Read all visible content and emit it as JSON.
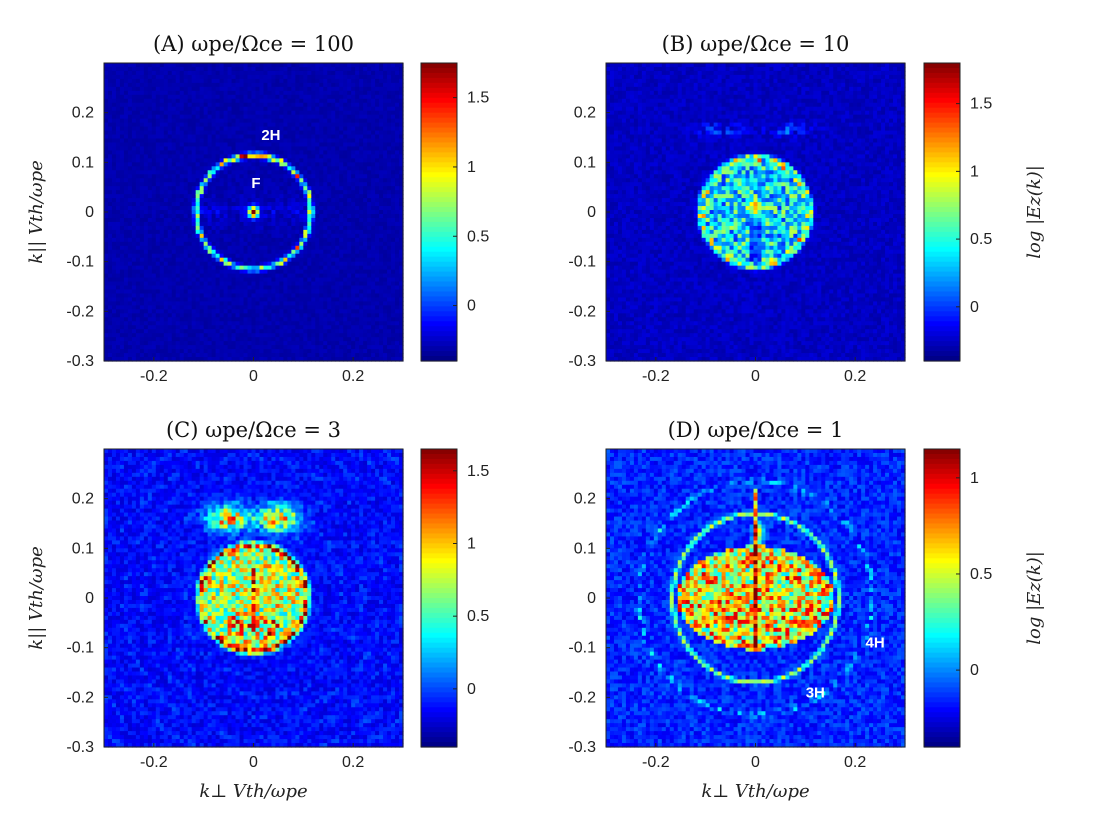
{
  "chart_data": [
    {
      "type": "heatmap",
      "panel": "A",
      "title": "(A) ωpe/Ωce = 100",
      "xlabel": "",
      "ylabel": "k|| Vth/ωpe",
      "xlim": [
        -0.3,
        0.3
      ],
      "ylim": [
        -0.3,
        0.3
      ],
      "xticks": [
        "-0.2",
        "0",
        "0.2"
      ],
      "yticks": [
        "-0.3",
        "-0.2",
        "-0.1",
        "0",
        "0.1",
        "0.2"
      ],
      "colorbar": {
        "label": "",
        "range": [
          -0.4,
          1.75
        ],
        "ticks": [
          "0",
          "0.5",
          "1",
          "1.5"
        ]
      },
      "annotations": [
        {
          "text": "2H",
          "x": 0.035,
          "y": 0.145
        },
        {
          "text": "F",
          "x": 0.005,
          "y": 0.048
        }
      ]
    },
    {
      "type": "heatmap",
      "panel": "B",
      "title": "(B) ωpe/Ωce = 10",
      "xlabel": "",
      "ylabel": "",
      "xlim": [
        -0.3,
        0.3
      ],
      "ylim": [
        -0.3,
        0.3
      ],
      "xticks": [
        "-0.2",
        "0",
        "0.2"
      ],
      "yticks": [
        "-0.3",
        "-0.2",
        "-0.1",
        "0",
        "0.1",
        "0.2"
      ],
      "colorbar": {
        "label": "log |Ez(k)|",
        "range": [
          -0.4,
          1.8
        ],
        "ticks": [
          "0",
          "0.5",
          "1",
          "1.5"
        ]
      },
      "annotations": []
    },
    {
      "type": "heatmap",
      "panel": "C",
      "title": "(C) ωpe/Ωce = 3",
      "xlabel": "k⊥ Vth/ωpe",
      "ylabel": "k|| Vth/ωpe",
      "xlim": [
        -0.3,
        0.3
      ],
      "ylim": [
        -0.3,
        0.3
      ],
      "xticks": [
        "-0.2",
        "0",
        "0.2"
      ],
      "yticks": [
        "-0.3",
        "-0.2",
        "-0.1",
        "0",
        "0.1",
        "0.2"
      ],
      "colorbar": {
        "label": "",
        "range": [
          -0.4,
          1.65
        ],
        "ticks": [
          "0",
          "0.5",
          "1",
          "1.5"
        ]
      },
      "annotations": []
    },
    {
      "type": "heatmap",
      "panel": "D",
      "title": "(D) ωpe/Ωce = 1",
      "xlabel": "k⊥ Vth/ωpe",
      "ylabel": "",
      "xlim": [
        -0.3,
        0.3
      ],
      "ylim": [
        -0.3,
        0.3
      ],
      "xticks": [
        "-0.2",
        "0",
        "0.2"
      ],
      "yticks": [
        "-0.3",
        "-0.2",
        "-0.1",
        "0",
        "0.1",
        "0.2"
      ],
      "colorbar": {
        "label": "log |Ez(k)|",
        "range": [
          -0.4,
          1.15
        ],
        "ticks": [
          "0",
          "0.5",
          "1"
        ]
      },
      "annotations": [
        {
          "text": "4H",
          "x": 0.24,
          "y": -0.1
        },
        {
          "text": "3H",
          "x": 0.12,
          "y": -0.2
        }
      ]
    }
  ]
}
